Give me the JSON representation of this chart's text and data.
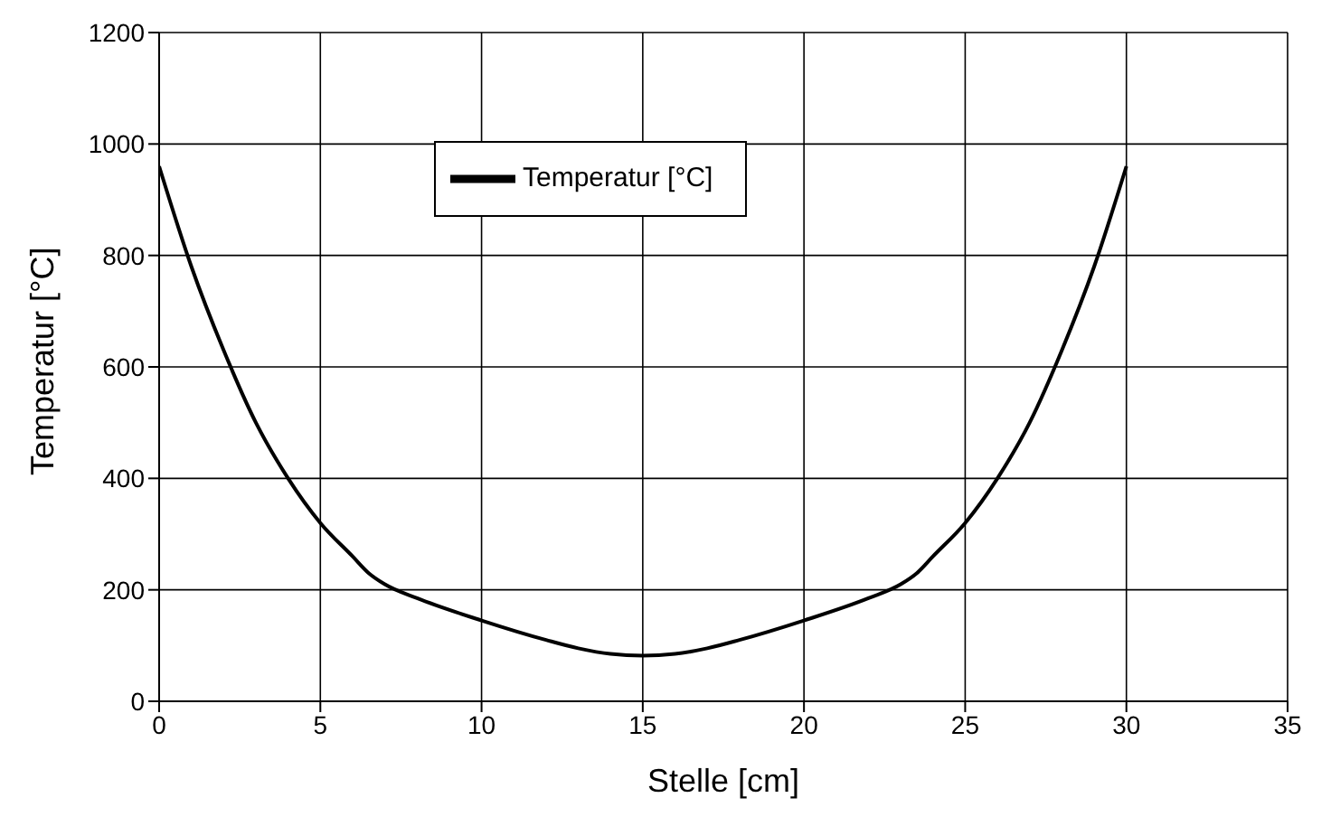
{
  "chart_data": {
    "type": "line",
    "xlabel": "Stelle [cm]",
    "ylabel": "Temperatur [°C]",
    "x": [
      0,
      1,
      2,
      3,
      4,
      5,
      6,
      6.5,
      7,
      8,
      10,
      12,
      13,
      14,
      15,
      16,
      17,
      18,
      20,
      22,
      23,
      23.5,
      24,
      25,
      26,
      27,
      28,
      29,
      30
    ],
    "series": [
      {
        "name": "Temperatur [°C]",
        "color": "#000000",
        "values": [
          960,
          780,
          630,
          500,
          400,
          320,
          260,
          230,
          210,
          185,
          145,
          110,
          95,
          85,
          82,
          85,
          95,
          110,
          145,
          185,
          210,
          230,
          260,
          320,
          400,
          500,
          630,
          780,
          960
        ]
      }
    ],
    "xlim": [
      0,
      35
    ],
    "xticks": [
      0,
      5,
      10,
      15,
      20,
      25,
      30,
      35
    ],
    "ylim": [
      0,
      1200
    ],
    "yticks": [
      0,
      200,
      400,
      600,
      800,
      1000,
      1200
    ],
    "grid": true,
    "legend": "top",
    "marker": "none",
    "line_style": "solid"
  }
}
